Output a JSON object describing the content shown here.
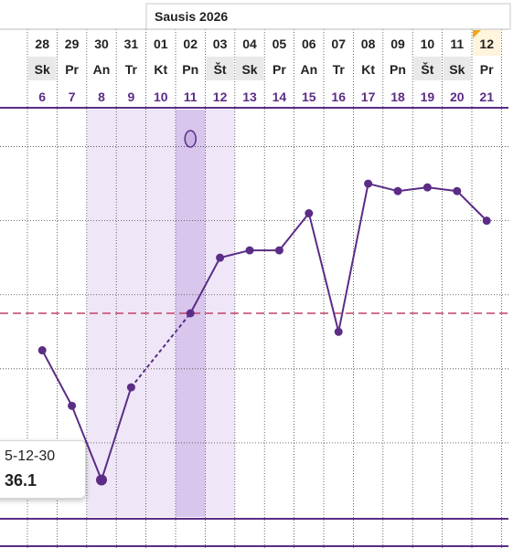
{
  "header": {
    "month_label": "Sausis 2026"
  },
  "colors": {
    "line": "#5b2d86",
    "cycle_day": "#5b2d86",
    "coverline": "#c0406a",
    "fertile": "#efe6f7",
    "ovulation": "#d8c6ec",
    "today": "#f2a51a",
    "weekend_bg": "#e9e9e9",
    "grid": "#444444"
  },
  "chart_data": {
    "type": "line",
    "columns": [
      {
        "date": "28",
        "weekday": "Sk",
        "cycle_day": "6",
        "weekend": true,
        "fertile": false,
        "ovulation": false,
        "today": false
      },
      {
        "date": "29",
        "weekday": "Pr",
        "cycle_day": "7",
        "weekend": false,
        "fertile": false,
        "ovulation": false,
        "today": false
      },
      {
        "date": "30",
        "weekday": "An",
        "cycle_day": "8",
        "weekend": false,
        "fertile": true,
        "ovulation": false,
        "today": false
      },
      {
        "date": "31",
        "weekday": "Tr",
        "cycle_day": "9",
        "weekend": false,
        "fertile": true,
        "ovulation": false,
        "today": false
      },
      {
        "date": "01",
        "weekday": "Kt",
        "cycle_day": "10",
        "weekend": false,
        "fertile": true,
        "ovulation": false,
        "today": false
      },
      {
        "date": "02",
        "weekday": "Pn",
        "cycle_day": "11",
        "weekend": false,
        "fertile": true,
        "ovulation": true,
        "today": false
      },
      {
        "date": "03",
        "weekday": "Št",
        "cycle_day": "12",
        "weekend": true,
        "fertile": true,
        "ovulation": false,
        "today": false
      },
      {
        "date": "04",
        "weekday": "Sk",
        "cycle_day": "13",
        "weekend": true,
        "fertile": false,
        "ovulation": false,
        "today": false
      },
      {
        "date": "05",
        "weekday": "Pr",
        "cycle_day": "14",
        "weekend": false,
        "fertile": false,
        "ovulation": false,
        "today": false
      },
      {
        "date": "06",
        "weekday": "An",
        "cycle_day": "15",
        "weekend": false,
        "fertile": false,
        "ovulation": false,
        "today": false
      },
      {
        "date": "07",
        "weekday": "Tr",
        "cycle_day": "16",
        "weekend": false,
        "fertile": false,
        "ovulation": false,
        "today": false
      },
      {
        "date": "08",
        "weekday": "Kt",
        "cycle_day": "17",
        "weekend": false,
        "fertile": false,
        "ovulation": false,
        "today": false
      },
      {
        "date": "09",
        "weekday": "Pn",
        "cycle_day": "18",
        "weekend": false,
        "fertile": false,
        "ovulation": false,
        "today": false
      },
      {
        "date": "10",
        "weekday": "Št",
        "cycle_day": "19",
        "weekend": true,
        "fertile": false,
        "ovulation": false,
        "today": false
      },
      {
        "date": "11",
        "weekday": "Sk",
        "cycle_day": "20",
        "weekend": true,
        "fertile": false,
        "ovulation": false,
        "today": false
      },
      {
        "date": "12",
        "weekday": "Pr",
        "cycle_day": "21",
        "weekend": false,
        "fertile": false,
        "ovulation": false,
        "today": true
      }
    ],
    "series": [
      {
        "values": [
          36.45,
          36.3,
          36.1,
          36.35,
          null,
          36.55,
          36.7,
          36.72,
          36.72,
          36.82,
          36.5,
          36.9,
          36.88,
          36.89,
          36.88,
          36.8
        ]
      }
    ],
    "coverline": 36.55,
    "ylim": [
      36.0,
      37.1
    ],
    "gridlines": [
      36.2,
      36.4,
      36.6,
      36.8,
      37.0
    ],
    "ovulation_marker": "egg-icon",
    "tooltip": {
      "date": "5-12-30",
      "value": "36.1"
    }
  }
}
